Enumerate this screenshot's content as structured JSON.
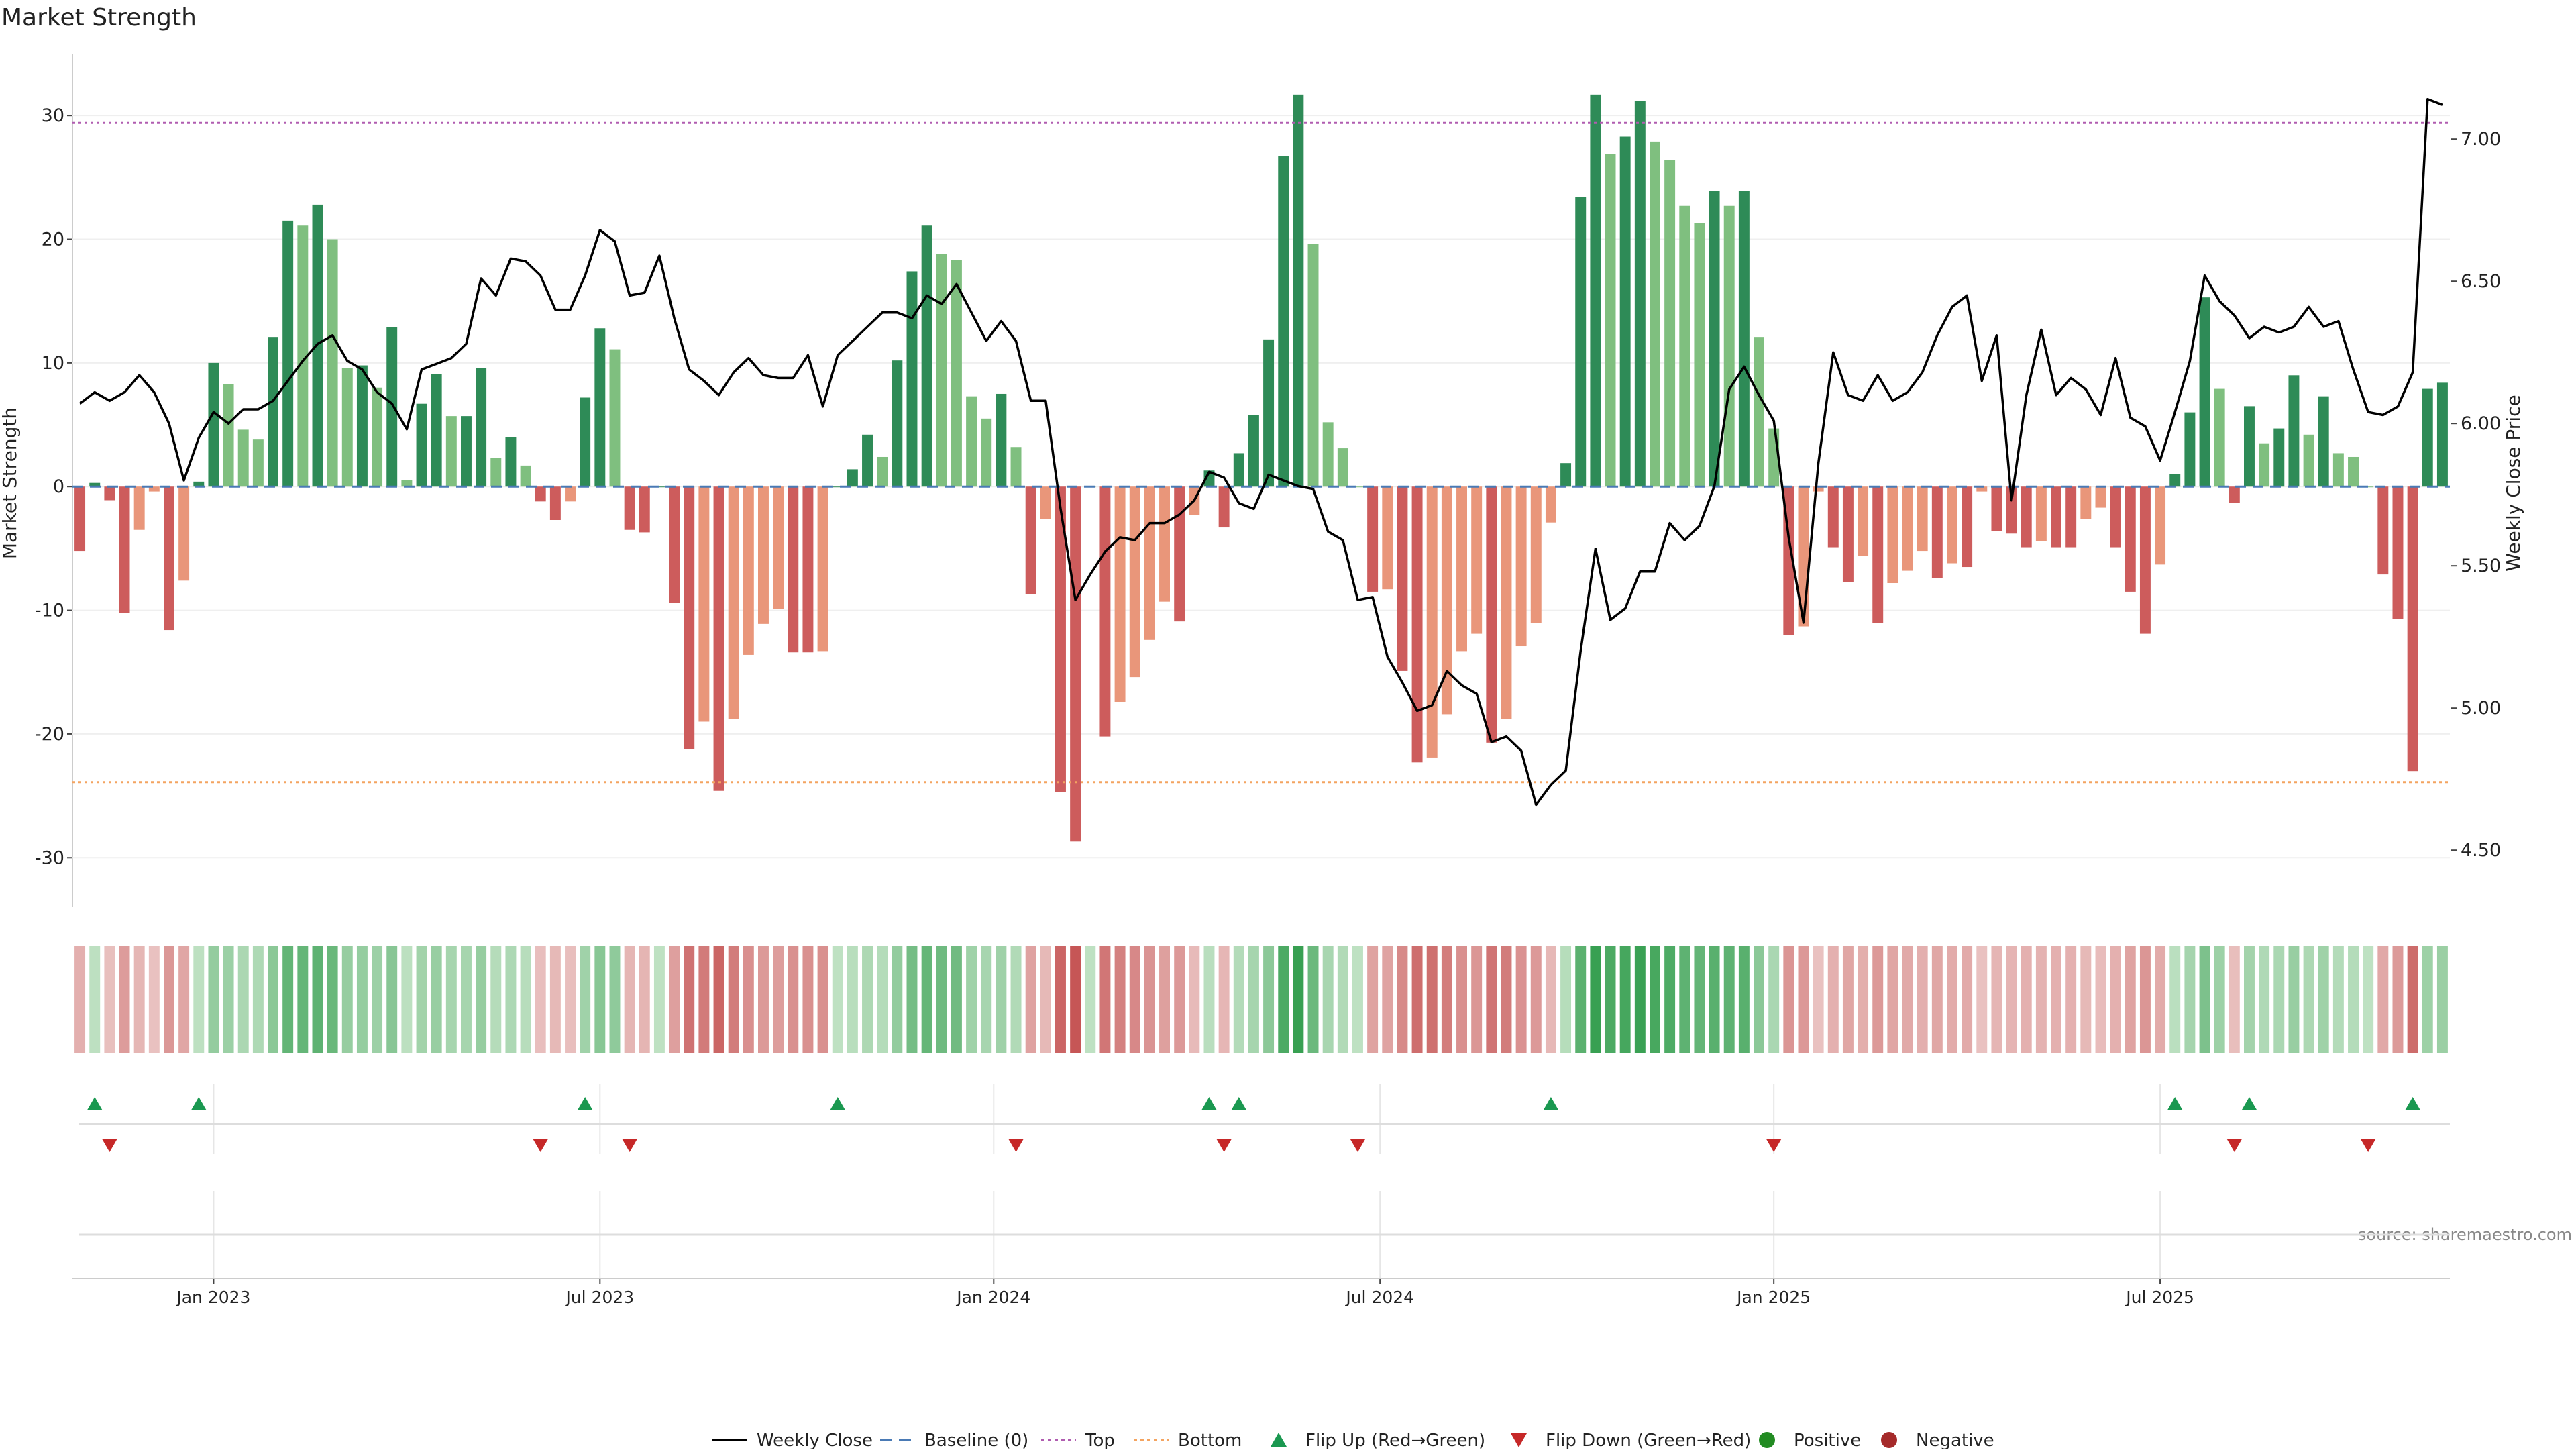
{
  "chart_data": {
    "type": "bar",
    "title": "Market Strength",
    "ylabel_left": "Market Strength",
    "ylabel_right": "Weekly Close Price",
    "source": "source: sharemaestro.com",
    "ylim_left": [
      -34,
      35
    ],
    "ylim_right": [
      4.3,
      7.3
    ],
    "yticks_left": [
      "30",
      "20",
      "10",
      "0",
      "-10",
      "-20",
      "-30"
    ],
    "yticks_left_values": [
      30,
      20,
      10,
      0,
      -10,
      -20,
      -30
    ],
    "yticks_right": [
      "7.00",
      "6.50",
      "6.00",
      "5.50",
      "5.00",
      "4.50"
    ],
    "yticks_right_values": [
      7.0,
      6.5,
      6.0,
      5.5,
      5.0,
      4.5
    ],
    "x_ticks": [
      {
        "label": "Jan 2023",
        "index": 9
      },
      {
        "label": "Jul 2023",
        "index": 35
      },
      {
        "label": "Jan 2024",
        "index": 61.5
      },
      {
        "label": "Jul 2024",
        "index": 87.5
      },
      {
        "label": "Jan 2025",
        "index": 114
      },
      {
        "label": "Jul 2025",
        "index": 140
      }
    ],
    "reference_lines": {
      "top": 29.4,
      "bottom": -23.9,
      "baseline": 0
    },
    "colors": {
      "dark_green": "#2e8b57",
      "light_green": "#7fbf7f",
      "dark_red": "#cd5c5c",
      "light_red": "#e9967a",
      "close_line": "#000000",
      "baseline": "#4a7ab5",
      "top": "#b05cb0",
      "bottom": "#f4a460",
      "flip_up": "#1a9850",
      "flip_down": "#c62828",
      "positive": "#228b22",
      "negative": "#a52a2a"
    },
    "strength": [
      -5.2,
      0.3,
      -1.1,
      -10.2,
      -3.5,
      -0.4,
      -11.6,
      -7.6,
      0.4,
      10,
      8.3,
      4.6,
      3.8,
      12.1,
      21.5,
      21.1,
      22.8,
      20,
      9.6,
      9.8,
      8,
      12.9,
      0.5,
      6.7,
      9.1,
      5.7,
      5.7,
      9.6,
      2.3,
      4,
      1.7,
      -1.2,
      -2.7,
      -1.2,
      7.2,
      12.8,
      11.1,
      -3.5,
      -3.7,
      0,
      -9.4,
      -21.2,
      -19,
      -24.6,
      -18.8,
      -13.6,
      -11.1,
      -9.9,
      -13.4,
      -13.4,
      -13.3,
      0,
      1.4,
      4.2,
      2.4,
      10.2,
      17.4,
      21.1,
      18.8,
      18.3,
      7.3,
      5.5,
      7.5,
      3.2,
      -8.7,
      -2.6,
      -24.7,
      -28.7,
      0,
      -20.2,
      -17.4,
      -15.4,
      -12.4,
      -9.3,
      -10.9,
      -2.3,
      1.3,
      -3.3,
      2.7,
      5.8,
      11.9,
      26.7,
      31.7,
      19.6,
      5.2,
      3.1,
      0,
      -8.5,
      -8.3,
      -14.9,
      -22.3,
      -21.9,
      -18.4,
      -13.3,
      -11.9,
      -20.7,
      -18.8,
      -12.9,
      -11,
      -2.9,
      1.9,
      23.4,
      31.7,
      26.9,
      28.3,
      31.2,
      27.9,
      26.4,
      22.7,
      21.3,
      23.9,
      22.7,
      23.9,
      12.1,
      4.7,
      -12,
      -11.3,
      -0.4,
      -4.9,
      -7.7,
      -5.6,
      -11,
      -7.8,
      -6.8,
      -5.2,
      -7.4,
      -6.2,
      -6.5,
      -0.4,
      -3.6,
      -3.8,
      -4.9,
      -4.4,
      -4.9,
      -4.9,
      -2.6,
      -1.7,
      -4.9,
      -8.5,
      -11.9,
      -6.3,
      1,
      6,
      15.3,
      7.9,
      -1.3,
      6.5,
      3.5,
      4.7,
      9,
      4.2,
      7.3,
      2.7,
      2.4,
      0,
      -7.1,
      -10.7,
      -23,
      7.9,
      8.4
    ],
    "heat": [
      1,
      1,
      1,
      1,
      1,
      1,
      1,
      1,
      1,
      1,
      1,
      1,
      1,
      1,
      1,
      1,
      1,
      1,
      1,
      1,
      1,
      1,
      1,
      1,
      1,
      1,
      1,
      1,
      1,
      1,
      1,
      1,
      1,
      1,
      1,
      1,
      1,
      1,
      1,
      1,
      1,
      1,
      1,
      1,
      1,
      1,
      1,
      1,
      1,
      1,
      1,
      1,
      1,
      1,
      1,
      1,
      1,
      1,
      1,
      1,
      1,
      1,
      1,
      1,
      1,
      1,
      1,
      1,
      1,
      1,
      1,
      1,
      1,
      1,
      1,
      1,
      1,
      1,
      1,
      1,
      1,
      1,
      1,
      1,
      1,
      1,
      1,
      1,
      1,
      1,
      1,
      1,
      1,
      1,
      1,
      1,
      1,
      1,
      1,
      1,
      1,
      1,
      1,
      1,
      1,
      1,
      1,
      1,
      1,
      1,
      1,
      1,
      1,
      1,
      1,
      1,
      1,
      1,
      1,
      1,
      1,
      1,
      1,
      1,
      1,
      1,
      1,
      1,
      1,
      1,
      1,
      1,
      1,
      1,
      1,
      1,
      1,
      1,
      1,
      1,
      1,
      1,
      1,
      1,
      1,
      1,
      1,
      1,
      1,
      1,
      1,
      1,
      1,
      1,
      1,
      1,
      1,
      1,
      1
    ],
    "close": [
      6.07,
      6.11,
      6.08,
      6.11,
      6.17,
      6.11,
      6.0,
      5.8,
      5.95,
      6.04,
      6.0,
      6.05,
      6.05,
      6.08,
      6.15,
      6.22,
      6.28,
      6.31,
      6.22,
      6.19,
      6.11,
      6.07,
      5.98,
      6.19,
      6.21,
      6.23,
      6.28,
      6.51,
      6.45,
      6.58,
      6.57,
      6.52,
      6.4,
      6.4,
      6.52,
      6.68,
      6.64,
      6.45,
      6.46,
      6.59,
      6.37,
      6.19,
      6.15,
      6.1,
      6.18,
      6.23,
      6.17,
      6.16,
      6.16,
      6.24,
      6.06,
      6.24,
      6.29,
      6.34,
      6.39,
      6.39,
      6.37,
      6.45,
      6.42,
      6.49,
      6.39,
      6.29,
      6.36,
      6.29,
      6.08,
      6.08,
      5.7,
      5.38,
      5.47,
      5.55,
      5.6,
      5.59,
      5.65,
      5.65,
      5.68,
      5.73,
      5.83,
      5.81,
      5.72,
      5.7,
      5.82,
      5.8,
      5.78,
      5.77,
      5.62,
      5.59,
      5.38,
      5.39,
      5.18,
      5.09,
      4.99,
      5.01,
      5.13,
      5.08,
      5.05,
      4.88,
      4.9,
      4.85,
      4.66,
      4.73,
      4.78,
      5.2,
      5.56,
      5.31,
      5.35,
      5.48,
      5.48,
      5.65,
      5.59,
      5.64,
      5.78,
      6.12,
      6.2,
      6.1,
      6.01,
      5.6,
      5.3,
      5.86,
      6.25,
      6.1,
      6.08,
      6.17,
      6.08,
      6.11,
      6.18,
      6.31,
      6.41,
      6.45,
      6.15,
      6.31,
      5.73,
      6.1,
      6.33,
      6.1,
      6.16,
      6.12,
      6.03,
      6.23,
      6.02,
      5.99,
      5.87,
      6.04,
      6.22,
      6.52,
      6.43,
      6.38,
      6.3,
      6.34,
      6.32,
      6.34,
      6.41,
      6.34,
      6.36,
      6.19,
      6.04,
      6.03,
      6.06,
      6.18,
      7.14,
      7.12
    ],
    "flip_up_indices": [
      1,
      8,
      34,
      51,
      76,
      78,
      99,
      141,
      146,
      157
    ],
    "flip_down_indices": [
      2,
      31,
      37,
      63,
      77,
      86,
      114,
      145,
      154
    ],
    "legend": [
      {
        "key": "close",
        "label": "Weekly Close"
      },
      {
        "key": "baseline",
        "label": "Baseline (0)"
      },
      {
        "key": "top",
        "label": "Top"
      },
      {
        "key": "bottom",
        "label": "Bottom"
      },
      {
        "key": "flip_up",
        "label": "Flip Up (Red→Green)"
      },
      {
        "key": "flip_down",
        "label": "Flip Down (Green→Red)"
      },
      {
        "key": "positive",
        "label": "Positive"
      },
      {
        "key": "negative",
        "label": "Negative"
      }
    ]
  }
}
